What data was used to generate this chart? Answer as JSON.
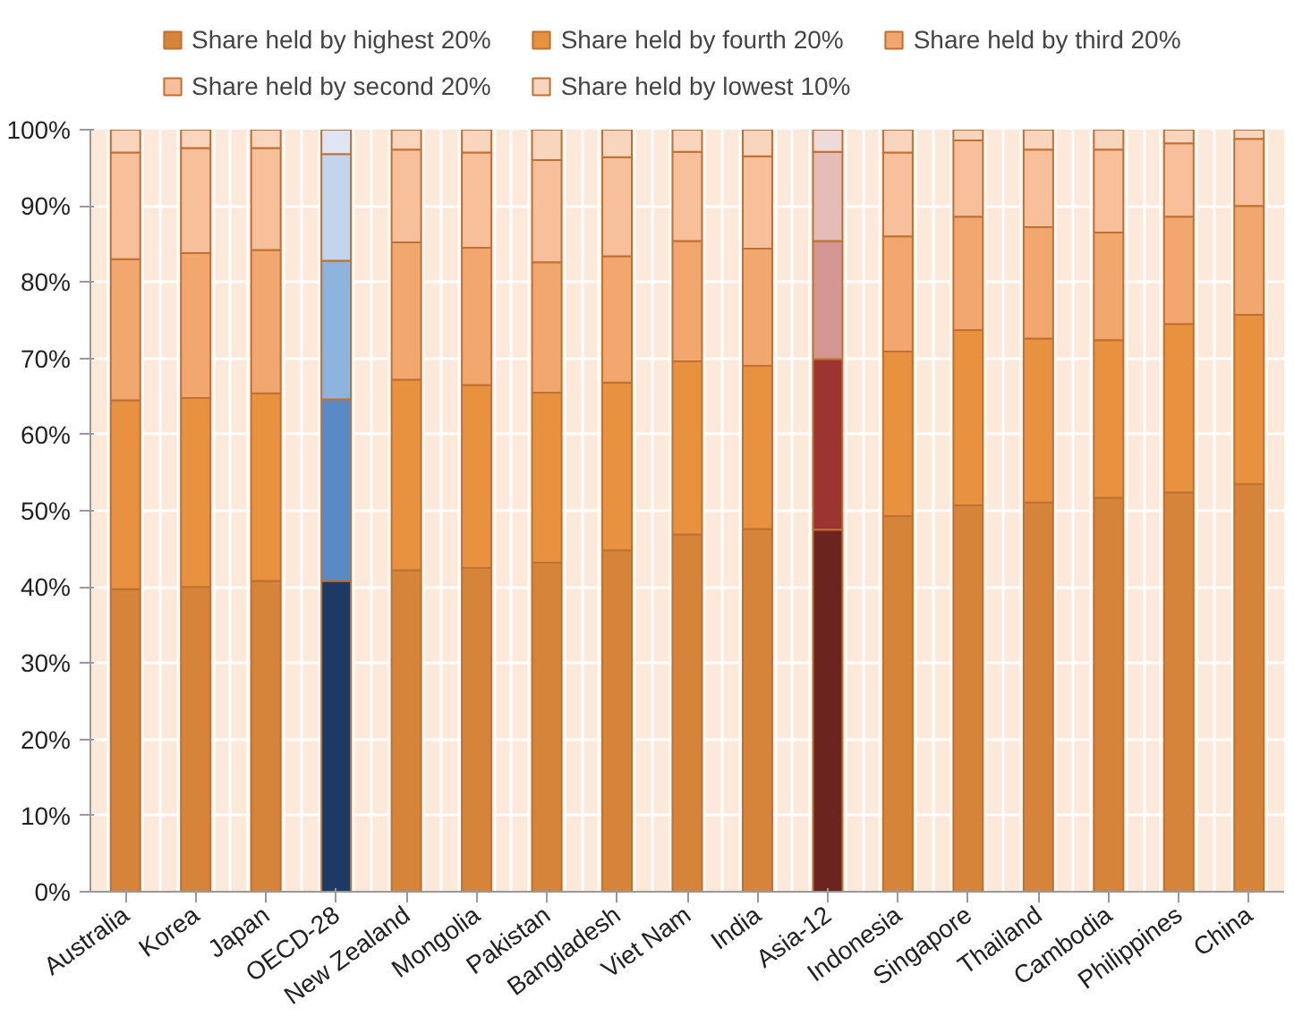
{
  "chart_data": {
    "type": "bar",
    "stacked": true,
    "categories": [
      "Australia",
      "Korea",
      "Japan",
      "OECD-28",
      "New Zealand",
      "Mongolia",
      "Pakistan",
      "Bangladesh",
      "Viet Nam",
      "India",
      "Asia-12",
      "Indonesia",
      "Singapore",
      "Thailand",
      "Cambodia",
      "Philippines",
      "China"
    ],
    "series": [
      {
        "name": "Share held by highest 20%",
        "color": "#d6843a",
        "colors": [
          "#d6843a",
          "#d6843a",
          "#d6843a",
          "#1c3a63",
          "#d6843a",
          "#d6843a",
          "#d6843a",
          "#d6843a",
          "#d6843a",
          "#d6843a",
          "#6b2420",
          "#d6843a",
          "#d6843a",
          "#d6843a",
          "#d6843a",
          "#d6843a",
          "#d6843a"
        ],
        "values": [
          39.7,
          40.0,
          40.8,
          40.8,
          42.2,
          42.5,
          43.2,
          44.8,
          46.9,
          47.6,
          47.5,
          49.3,
          50.7,
          51.1,
          51.7,
          52.4,
          53.5
        ]
      },
      {
        "name": "Share held by fourth 20%",
        "color": "#e8913f",
        "colors": [
          "#e8913f",
          "#e8913f",
          "#e8913f",
          "#5a8ac6",
          "#e8913f",
          "#e8913f",
          "#e8913f",
          "#e8913f",
          "#e8913f",
          "#e8913f",
          "#9c3532",
          "#e8913f",
          "#e8913f",
          "#e8913f",
          "#e8913f",
          "#e8913f",
          "#e8913f"
        ],
        "values": [
          24.8,
          24.8,
          24.6,
          23.8,
          25.0,
          24.0,
          22.3,
          22.0,
          22.7,
          21.4,
          22.4,
          21.6,
          23.0,
          21.5,
          20.7,
          22.1,
          22.2
        ]
      },
      {
        "name": "Share held by third 20%",
        "color": "#f2a76e",
        "colors": [
          "#f2a76e",
          "#f2a76e",
          "#f2a76e",
          "#8eb3dd",
          "#f2a76e",
          "#f2a76e",
          "#f2a76e",
          "#f2a76e",
          "#f2a76e",
          "#f2a76e",
          "#d49692",
          "#f2a76e",
          "#f2a76e",
          "#f2a76e",
          "#f2a76e",
          "#f2a76e",
          "#f2a76e"
        ],
        "values": [
          18.5,
          19.0,
          18.8,
          18.2,
          18.0,
          18.0,
          17.1,
          16.6,
          15.8,
          15.4,
          15.5,
          15.1,
          14.9,
          14.6,
          14.1,
          14.1,
          14.3
        ]
      },
      {
        "name": "Share held by second 20%",
        "color": "#f7bf9a",
        "colors": [
          "#f7bf9a",
          "#f7bf9a",
          "#f7bf9a",
          "#c3d5ec",
          "#f7bf9a",
          "#f7bf9a",
          "#f7bf9a",
          "#f7bf9a",
          "#f7bf9a",
          "#f7bf9a",
          "#e6bcb9",
          "#f7bf9a",
          "#f7bf9a",
          "#f7bf9a",
          "#f7bf9a",
          "#f7bf9a",
          "#f7bf9a"
        ],
        "values": [
          14.0,
          13.8,
          13.4,
          14.0,
          12.2,
          12.5,
          13.4,
          13.0,
          11.7,
          12.1,
          11.7,
          11.0,
          10.0,
          10.2,
          10.9,
          9.6,
          8.8
        ]
      },
      {
        "name": "Share held by lowest 10%",
        "color": "#fad5bd",
        "colors": [
          "#fad5bd",
          "#fad5bd",
          "#fad5bd",
          "#dde6f2",
          "#fad5bd",
          "#fad5bd",
          "#fad5bd",
          "#fad5bd",
          "#fad5bd",
          "#fad5bd",
          "#eedad8",
          "#fad5bd",
          "#fad5bd",
          "#fad5bd",
          "#fad5bd",
          "#fad5bd",
          "#fad5bd"
        ],
        "values": [
          3.0,
          2.4,
          2.4,
          3.2,
          2.6,
          3.0,
          4.0,
          3.6,
          2.9,
          3.5,
          2.9,
          3.0,
          1.4,
          2.6,
          2.6,
          1.8,
          1.2
        ]
      }
    ],
    "ylim": [
      0,
      100
    ],
    "yticks": [
      {
        "value": 0,
        "label": "0%"
      },
      {
        "value": 10,
        "label": "10%"
      },
      {
        "value": 20,
        "label": "20%"
      },
      {
        "value": 30,
        "label": "30%"
      },
      {
        "value": 40,
        "label": "40%"
      },
      {
        "value": 50,
        "label": "50%"
      },
      {
        "value": 60,
        "label": "60%"
      },
      {
        "value": 70,
        "label": "70%"
      },
      {
        "value": 80,
        "label": "80%"
      },
      {
        "value": 90,
        "label": "90%"
      },
      {
        "value": 100,
        "label": "100%"
      }
    ],
    "grid": true,
    "legend": "top"
  }
}
